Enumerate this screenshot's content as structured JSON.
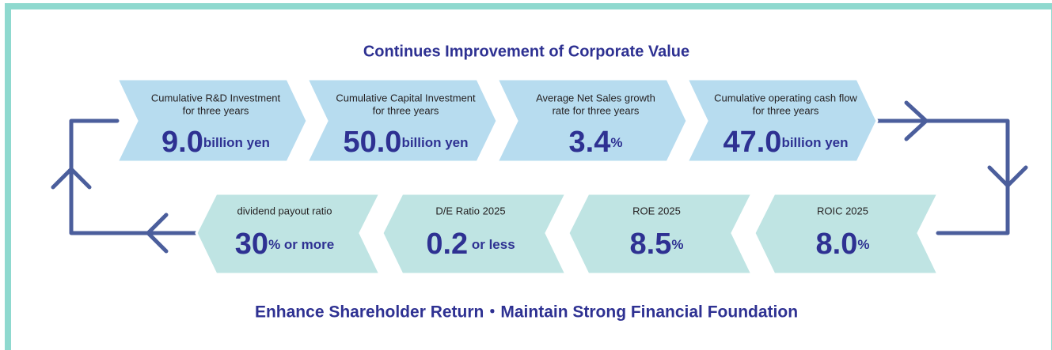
{
  "title": "Continues Improvement of Corporate Value",
  "top_row": [
    {
      "label_lines": [
        "Cumulative R&D Investment",
        "for three years"
      ],
      "value": "9.0",
      "unit": "billion yen"
    },
    {
      "label_lines": [
        "Cumulative Capital Investment",
        "for three years"
      ],
      "value": "50.0",
      "unit": "billion yen"
    },
    {
      "label_lines": [
        "Average Net Sales growth",
        "rate for three years"
      ],
      "value": "3.4",
      "unit": "%"
    },
    {
      "label_lines": [
        "Cumulative operating cash flow",
        "for three years"
      ],
      "value": "47.0",
      "unit": "billion yen"
    }
  ],
  "bottom_row": [
    {
      "label": "ROIC 2025",
      "value": "8.0",
      "unit": "%"
    },
    {
      "label": "ROE 2025",
      "value": "8.5",
      "unit": "%"
    },
    {
      "label": "D/E Ratio 2025",
      "value": "0.2",
      "unit": " or less"
    },
    {
      "label": "dividend payout ratio",
      "value": "30",
      "unit": "% or more"
    }
  ],
  "footer": "Enhance Shareholder Return・Maintain Strong Financial Foundation"
}
